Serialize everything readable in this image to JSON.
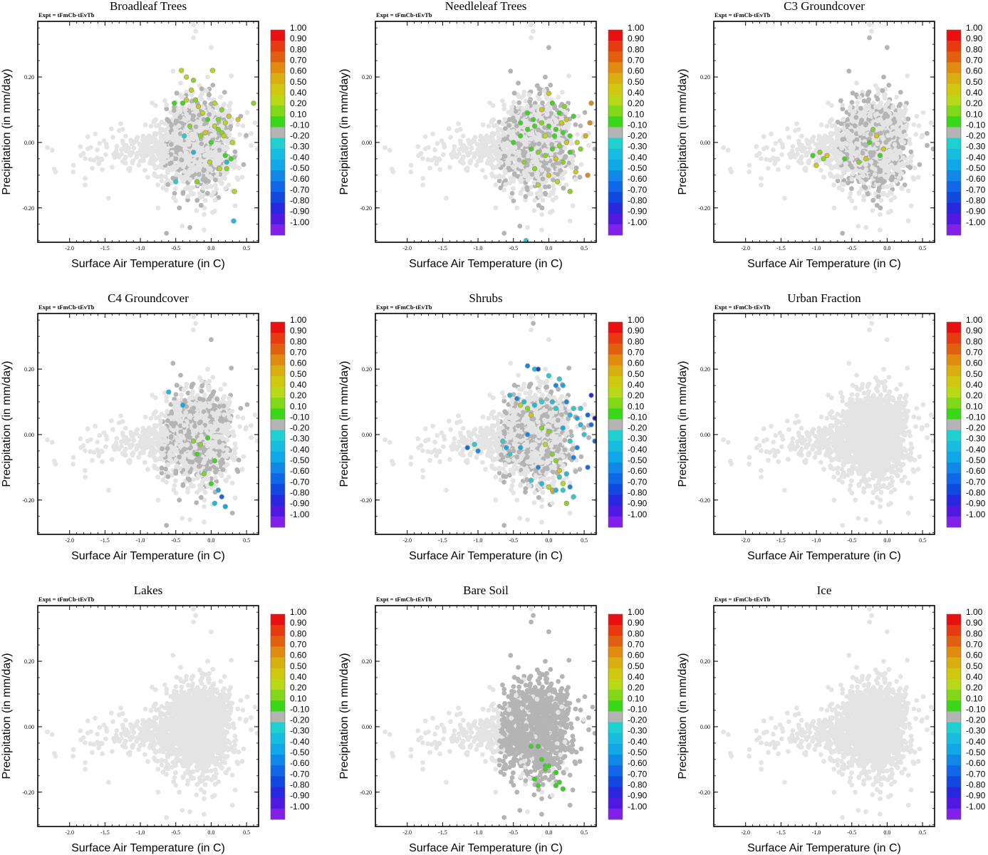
{
  "figure": {
    "panel_count": 9
  },
  "chart_data": {
    "type": "scatter",
    "experiment_label": "Expt = tFmCb-tEvTb",
    "xlabel": "Surface Air Temperature (in C)",
    "ylabel": "Precipitation (in mm/day)",
    "xlim": [
      -2.45,
      0.67
    ],
    "ylim": [
      -0.305,
      0.37
    ],
    "x_ticks": [
      -2.0,
      -1.5,
      -1.0,
      -0.5,
      0.0,
      0.5
    ],
    "x_tick_labels": [
      "-2.0",
      "-1.5",
      "-1.0",
      "-0.5",
      "0.0",
      "0.5"
    ],
    "y_ticks": [
      -0.2,
      0.0,
      0.2
    ],
    "y_tick_labels": [
      "-0.20",
      "0.00",
      "0.20"
    ],
    "background_color": "#e4e4e4",
    "land_color": "#b4b4b4",
    "colorbar": {
      "labels": [
        "1.00",
        "0.90",
        "0.80",
        "0.70",
        "0.60",
        "0.50",
        "0.40",
        "0.20",
        "0.10",
        "-0.10",
        "-0.20",
        "-0.30",
        "-0.40",
        "-0.50",
        "-0.60",
        "-0.70",
        "-0.80",
        "-0.90",
        "-1.00"
      ],
      "colors": [
        "#e81010",
        "#e83a10",
        "#e06010",
        "#e08a10",
        "#d8ae10",
        "#d0c810",
        "#b8d818",
        "#80d818",
        "#38d818",
        "#b4b4b4",
        "#20d0d0",
        "#18bce0",
        "#10a8e8",
        "#1088e8",
        "#1068e8",
        "#1048e0",
        "#2828e0",
        "#5018e0",
        "#8020e8"
      ]
    },
    "panels": [
      {
        "title": "Broadleaf Trees",
        "cloud": [
          0,
          0.3,
          0.2
        ],
        "highlights": [
          [
            -0.42,
            0.22
          ],
          [
            -0.35,
            0.2
          ],
          [
            -0.25,
            0.19
          ],
          [
            -0.28,
            0.16
          ],
          [
            -0.35,
            0.13
          ],
          [
            -0.22,
            0.13
          ],
          [
            -0.18,
            0.11
          ],
          [
            -0.12,
            0.09
          ],
          [
            -0.05,
            0.07
          ],
          [
            0.05,
            0.05
          ],
          [
            0.1,
            0.04
          ],
          [
            0.15,
            0.03
          ],
          [
            0.2,
            0.06
          ],
          [
            0.25,
            0.08
          ],
          [
            -0.3,
            0.05
          ],
          [
            -0.15,
            0.02
          ],
          [
            0.0,
            0.0
          ],
          [
            -0.4,
            0.12
          ],
          [
            0.2,
            -0.04
          ],
          [
            0.12,
            -0.08
          ],
          [
            0.28,
            -0.05
          ],
          [
            0.33,
            -0.15
          ],
          [
            -0.52,
            0.12
          ],
          [
            0.02,
            0.22
          ],
          [
            0.6,
            0.12
          ],
          [
            0.38,
            0.07
          ],
          [
            0.05,
            0.12
          ],
          [
            -0.2,
            -0.12
          ],
          [
            0.15,
            0.1
          ],
          [
            -0.08,
            0.03
          ],
          [
            0.22,
            -0.08
          ],
          [
            0.3,
            0.0
          ],
          [
            0.1,
            0.07
          ],
          [
            -0.02,
            -0.06
          ],
          [
            0.18,
            0.02
          ]
        ],
        "highlight_colors": [
          "#d0c810",
          "#b8d818",
          "#80d818",
          "#38d818"
        ],
        "negatives": [
          [
            -0.5,
            -0.12
          ],
          [
            -0.38,
            0.02
          ],
          [
            0.32,
            -0.24
          ],
          [
            -0.25,
            -0.03
          ],
          [
            0.22,
            -0.06
          ]
        ],
        "negative_colors": [
          "#20d0d0",
          "#18bce0"
        ]
      },
      {
        "title": "Needleleaf Trees",
        "cloud": [
          0,
          0.35,
          0.3
        ],
        "highlights": [
          [
            -0.5,
            0.0
          ],
          [
            -0.4,
            0.02
          ],
          [
            -0.3,
            0.04
          ],
          [
            -0.2,
            0.05
          ],
          [
            -0.1,
            0.06
          ],
          [
            0.0,
            0.05
          ],
          [
            0.1,
            0.04
          ],
          [
            0.2,
            0.03
          ],
          [
            0.3,
            0.02
          ],
          [
            -0.25,
            -0.02
          ],
          [
            -0.15,
            -0.03
          ],
          [
            -0.05,
            -0.04
          ],
          [
            0.05,
            -0.02
          ],
          [
            0.15,
            -0.01
          ],
          [
            0.25,
            0.0
          ],
          [
            -0.35,
            -0.06
          ],
          [
            -0.2,
            -0.08
          ],
          [
            0.0,
            -0.1
          ],
          [
            0.2,
            -0.06
          ],
          [
            0.3,
            -0.03
          ],
          [
            0.4,
            0.0
          ],
          [
            -0.1,
            0.1
          ],
          [
            0.05,
            0.12
          ],
          [
            0.15,
            0.09
          ],
          [
            0.25,
            0.07
          ],
          [
            -0.3,
            0.09
          ],
          [
            0.0,
            0.15
          ],
          [
            0.35,
            0.08
          ],
          [
            -0.4,
            0.06
          ],
          [
            0.1,
            -0.05
          ],
          [
            0.45,
            -0.02
          ],
          [
            -0.15,
            -0.13
          ],
          [
            0.12,
            -0.12
          ],
          [
            0.3,
            -0.15
          ],
          [
            -0.05,
            0.02
          ],
          [
            0.18,
            0.06
          ],
          [
            0.08,
            0.02
          ],
          [
            -0.22,
            0.07
          ],
          [
            0.38,
            -0.09
          ],
          [
            0.22,
            0.11
          ]
        ],
        "highlight_colors": [
          "#80d818",
          "#38d818",
          "#b8d818",
          "#d0c810"
        ],
        "oranges": [
          [
            0.6,
            0.12
          ],
          [
            0.58,
            0.06
          ],
          [
            0.52,
            0.02
          ],
          [
            0.55,
            -0.1
          ]
        ],
        "orange_colors": [
          "#e08a10",
          "#d8ae10"
        ],
        "negatives": [
          [
            -0.32,
            -0.3
          ]
        ],
        "negative_colors": [
          "#20d0d0"
        ]
      },
      {
        "title": "C3 Groundcover",
        "cloud": [
          0,
          0.35,
          0.3
        ],
        "highlights": [
          [
            -1.05,
            -0.04
          ],
          [
            -0.95,
            -0.03
          ],
          [
            -0.85,
            -0.04
          ],
          [
            -0.2,
            0.04
          ],
          [
            -0.15,
            0.02
          ],
          [
            -0.25,
            0.0
          ],
          [
            -0.05,
            -0.02
          ],
          [
            -0.1,
            -0.04
          ],
          [
            -0.3,
            -0.05
          ],
          [
            -0.4,
            -0.06
          ],
          [
            -0.9,
            -0.05
          ],
          [
            -1.0,
            -0.07
          ],
          [
            -0.6,
            -0.05
          ]
        ],
        "highlight_colors": [
          "#38d818",
          "#80d818",
          "#d0c810"
        ],
        "negatives": [],
        "negative_colors": []
      },
      {
        "title": "C4 Groundcover",
        "cloud": [
          0,
          0.35,
          0.3
        ],
        "highlights": [
          [
            -0.05,
            -0.01
          ],
          [
            -0.15,
            -0.03
          ],
          [
            -0.25,
            -0.02
          ],
          [
            -0.2,
            -0.06
          ],
          [
            0.05,
            -0.08
          ],
          [
            -0.1,
            -0.12
          ],
          [
            0.0,
            -0.15
          ]
        ],
        "highlight_colors": [
          "#38d818",
          "#80d818"
        ],
        "negatives": [
          [
            -0.6,
            0.13
          ],
          [
            -0.4,
            0.09
          ],
          [
            0.1,
            -0.17
          ],
          [
            0.15,
            -0.19
          ],
          [
            0.2,
            -0.22
          ],
          [
            0.05,
            -0.21
          ]
        ],
        "negative_colors": [
          "#20d0d0",
          "#18bce0",
          "#10a8e8",
          "#1068e8"
        ]
      },
      {
        "title": "Shrubs",
        "cloud": [
          0,
          0.35,
          0.3
        ],
        "highlights": [
          [
            -0.4,
            0.09
          ],
          [
            -0.3,
            0.08
          ],
          [
            -0.1,
            0.02
          ],
          [
            0.0,
            0.01
          ],
          [
            -0.05,
            -0.03
          ],
          [
            0.1,
            -0.08
          ],
          [
            0.15,
            -0.11
          ],
          [
            0.2,
            -0.15
          ],
          [
            -0.25,
            0.06
          ],
          [
            0.05,
            -0.06
          ],
          [
            0.25,
            -0.21
          ],
          [
            0.0,
            -0.16
          ]
        ],
        "highlight_colors": [
          "#b8d818",
          "#80d818",
          "#d0c810"
        ],
        "oranges": [
          [
            0.05,
            -0.17
          ]
        ],
        "orange_colors": [
          "#d8ae10"
        ],
        "negatives": [
          [
            -0.55,
            0.12
          ],
          [
            -0.45,
            0.11
          ],
          [
            -0.35,
            0.1
          ],
          [
            -0.3,
            0.21
          ],
          [
            -0.2,
            0.2
          ],
          [
            0.0,
            0.18
          ],
          [
            0.1,
            0.15
          ],
          [
            0.15,
            0.17
          ],
          [
            0.2,
            0.15
          ],
          [
            0.25,
            0.1
          ],
          [
            0.3,
            0.06
          ],
          [
            0.35,
            0.08
          ],
          [
            0.4,
            0.05
          ],
          [
            0.45,
            0.03
          ],
          [
            0.5,
            0.0
          ],
          [
            0.2,
            0.02
          ],
          [
            0.3,
            -0.02
          ],
          [
            0.4,
            -0.04
          ],
          [
            0.35,
            -0.07
          ],
          [
            0.25,
            -0.12
          ],
          [
            0.3,
            -0.16
          ],
          [
            0.2,
            -0.17
          ],
          [
            0.1,
            -0.17
          ],
          [
            -0.15,
            -0.1
          ],
          [
            -0.4,
            -0.04
          ],
          [
            -0.55,
            -0.06
          ],
          [
            -0.6,
            -0.04
          ],
          [
            -0.65,
            -0.02
          ],
          [
            -1.0,
            -0.05
          ],
          [
            -1.05,
            -0.03
          ],
          [
            -0.2,
            0.09
          ],
          [
            -0.1,
            0.1
          ],
          [
            0.05,
            0.1
          ],
          [
            -0.25,
            -0.14
          ],
          [
            -0.1,
            -0.15
          ],
          [
            0.15,
            -0.13
          ],
          [
            0.35,
            -0.19
          ],
          [
            0.45,
            0.08
          ],
          [
            0.1,
            0.08
          ],
          [
            -0.3,
            0.0
          ]
        ],
        "negative_colors": [
          "#20d0d0",
          "#18bce0",
          "#10a8e8",
          "#1088e8"
        ],
        "deep": [
          [
            0.6,
            0.12
          ],
          [
            0.55,
            0.06
          ],
          [
            0.6,
            0.03
          ],
          [
            0.65,
            0.05
          ],
          [
            0.65,
            -0.02
          ],
          [
            0.55,
            -0.1
          ],
          [
            -0.15,
            0.2
          ],
          [
            -1.15,
            -0.04
          ]
        ],
        "deep_colors": [
          "#1048e0",
          "#2828e0",
          "#1068e8"
        ]
      },
      {
        "title": "Urban Fraction",
        "cloud": [
          0,
          0,
          0
        ],
        "highlights": [],
        "highlight_colors": [],
        "negatives": [],
        "negative_colors": []
      },
      {
        "title": "Lakes",
        "cloud": [
          0,
          0,
          0
        ],
        "highlights": [],
        "highlight_colors": [],
        "negatives": [],
        "negative_colors": []
      },
      {
        "title": "Bare Soil",
        "cloud": [
          0,
          0.9,
          0.3
        ],
        "highlights": [
          [
            -0.25,
            -0.06
          ],
          [
            -0.15,
            -0.06
          ],
          [
            -0.1,
            -0.1
          ],
          [
            -0.05,
            -0.12
          ],
          [
            0.0,
            -0.12
          ],
          [
            -0.2,
            -0.16
          ],
          [
            -0.15,
            -0.18
          ],
          [
            0.1,
            -0.14
          ],
          [
            0.15,
            -0.17
          ],
          [
            0.2,
            -0.19
          ],
          [
            0.1,
            -0.18
          ],
          [
            -0.05,
            -0.13
          ]
        ],
        "highlight_colors": [
          "#38d818",
          "#28d810"
        ],
        "negatives": [],
        "negative_colors": []
      },
      {
        "title": "Ice",
        "cloud": [
          0,
          0,
          0
        ],
        "highlights": [],
        "highlight_colors": [],
        "negatives": [],
        "negative_colors": []
      }
    ]
  }
}
